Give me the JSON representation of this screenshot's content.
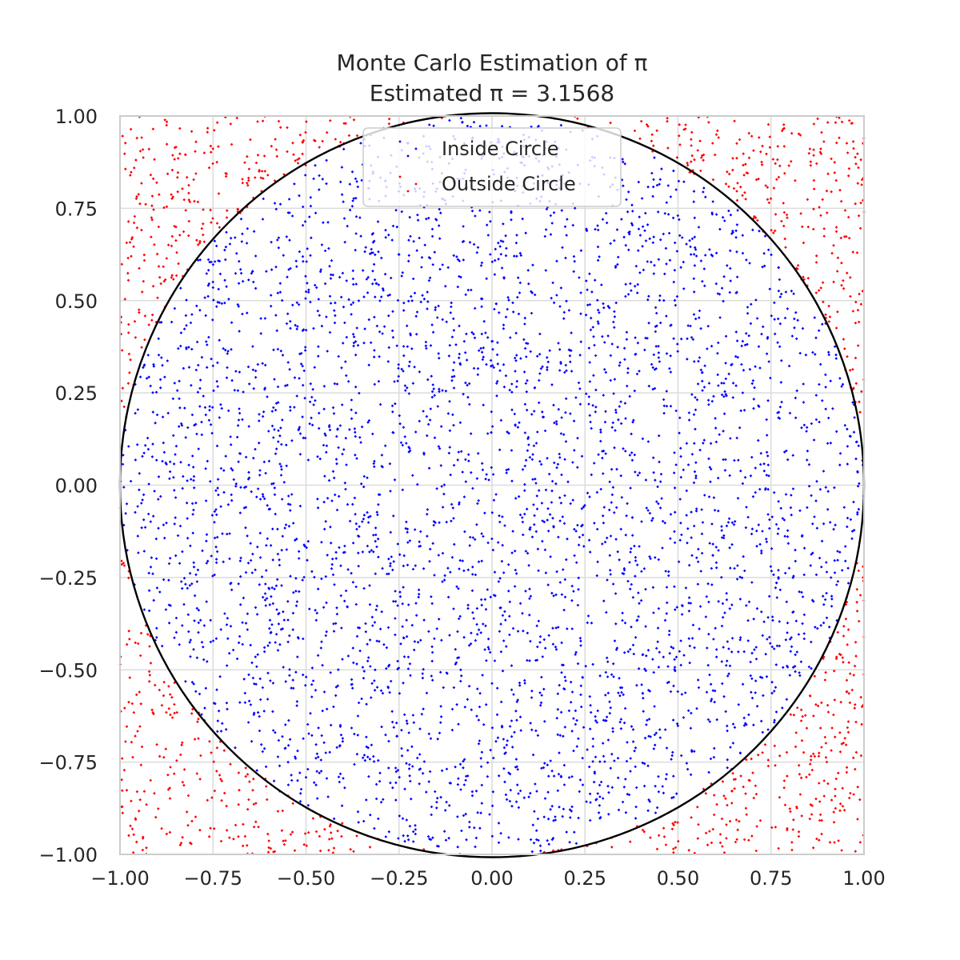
{
  "chart_data": {
    "type": "scatter",
    "title": "Monte Carlo Estimation of π",
    "subtitle": "Estimated π = 3.1568",
    "xlabel": "",
    "ylabel": "",
    "xlim": [
      -1.0,
      1.0
    ],
    "ylim": [
      -1.0,
      1.0
    ],
    "aspect": "equal",
    "grid": true,
    "legend_position": "upper center",
    "x_ticks": [
      -1.0,
      -0.75,
      -0.5,
      -0.25,
      0.0,
      0.25,
      0.5,
      0.75,
      1.0
    ],
    "y_ticks": [
      -1.0,
      -0.75,
      -0.5,
      -0.25,
      0.0,
      0.25,
      0.5,
      0.75,
      1.0
    ],
    "x_tick_labels": [
      "−1.00",
      "−0.75",
      "−0.50",
      "−0.25",
      "0.00",
      "0.25",
      "0.50",
      "0.75",
      "1.00"
    ],
    "y_tick_labels": [
      "−1.00",
      "−0.75",
      "−0.50",
      "−0.25",
      "0.00",
      "0.25",
      "0.50",
      "0.75",
      "1.00"
    ],
    "circle": {
      "center": [
        0,
        0
      ],
      "radius": 1,
      "color": "#000000"
    },
    "total_points": 5000,
    "estimated_pi": 3.1568,
    "series": [
      {
        "name": "Inside Circle",
        "color": "#0000ff",
        "count": 3946,
        "rule": "x^2 + y^2 <= 1"
      },
      {
        "name": "Outside Circle",
        "color": "#ff0000",
        "count": 1054,
        "rule": "x^2 + y^2 > 1"
      }
    ]
  }
}
